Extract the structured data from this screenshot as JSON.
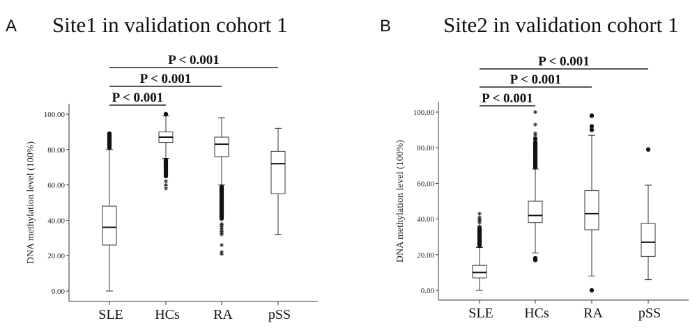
{
  "chart_data": [
    {
      "type": "box",
      "panel_label": "A",
      "title": "Site1 in validation cohort 1",
      "ylabel": "DNA methylation level (100%)",
      "ylim": [
        0,
        100
      ],
      "yticks": [
        "0.00",
        "20.00",
        "40.00",
        "60.00",
        "80.00",
        "100.00"
      ],
      "categories": [
        "SLE",
        "HCs",
        "RA",
        "pSS"
      ],
      "boxes": [
        {
          "min": 0,
          "q1": 26,
          "median": 36,
          "q3": 48,
          "max": 80,
          "outliers_circle": [
            81,
            82,
            83,
            84,
            85,
            86,
            87,
            88,
            89
          ],
          "outliers_star": []
        },
        {
          "min": 75,
          "q1": 84,
          "median": 87,
          "q3": 90,
          "max": 99,
          "outliers_circle": [
            100,
            65,
            66,
            67,
            68,
            69,
            70,
            71,
            72,
            73,
            74
          ],
          "outliers_star": [
            58,
            60,
            62
          ]
        },
        {
          "min": 60,
          "q1": 76,
          "median": 83,
          "q3": 87,
          "max": 98,
          "outliers_circle": [
            41,
            42,
            43,
            44,
            45,
            46,
            47,
            48,
            49,
            50,
            51,
            52,
            53,
            54,
            55,
            56,
            57,
            58,
            59
          ],
          "outliers_star": [
            21,
            22,
            26,
            32,
            33,
            34,
            35,
            36,
            37,
            38
          ]
        },
        {
          "min": 32,
          "q1": 55,
          "median": 72,
          "q3": 79,
          "max": 92,
          "outliers_circle": [],
          "outliers_star": []
        }
      ],
      "comparisons": [
        {
          "from": "SLE",
          "to": "pSS",
          "label": "P < 0.001"
        },
        {
          "from": "SLE",
          "to": "RA",
          "label": "P < 0.001"
        },
        {
          "from": "SLE",
          "to": "HCs",
          "label": "P < 0.001"
        }
      ]
    },
    {
      "type": "box",
      "panel_label": "B",
      "title": "Site2 in validation cohort 1",
      "ylabel": "DNA methylation level (100%)",
      "ylim": [
        0,
        100
      ],
      "yticks": [
        "0.00",
        "20.00",
        "40.00",
        "60.00",
        "80.00",
        "100.00"
      ],
      "categories": [
        "SLE",
        "HCs",
        "RA",
        "pSS"
      ],
      "boxes": [
        {
          "min": 0,
          "q1": 7,
          "median": 10,
          "q3": 14,
          "max": 24,
          "outliers_circle": [
            25,
            26,
            27,
            28,
            29,
            30,
            31,
            32,
            33,
            34,
            35
          ],
          "outliers_star": [
            36,
            38,
            39,
            40,
            41,
            43
          ]
        },
        {
          "min": 21,
          "q1": 38,
          "median": 42,
          "q3": 50,
          "max": 68,
          "outliers_circle": [
            17,
            18,
            69,
            70,
            71,
            72,
            73,
            74,
            75,
            76,
            77,
            78,
            79,
            80,
            81,
            82,
            83,
            85
          ],
          "outliers_star": [
            87,
            88,
            93,
            100
          ]
        },
        {
          "min": 8,
          "q1": 34,
          "median": 43,
          "q3": 56,
          "max": 87,
          "outliers_circle": [
            0,
            90,
            92,
            98
          ],
          "outliers_star": []
        },
        {
          "min": 6,
          "q1": 19,
          "median": 27,
          "q3": 37.5,
          "max": 59,
          "outliers_circle": [
            79
          ],
          "outliers_star": []
        }
      ],
      "comparisons": [
        {
          "from": "SLE",
          "to": "pSS",
          "label": "P < 0.001"
        },
        {
          "from": "SLE",
          "to": "RA",
          "label": "P < 0.001"
        },
        {
          "from": "SLE",
          "to": "HCs",
          "label": "P < 0.001"
        }
      ]
    }
  ]
}
